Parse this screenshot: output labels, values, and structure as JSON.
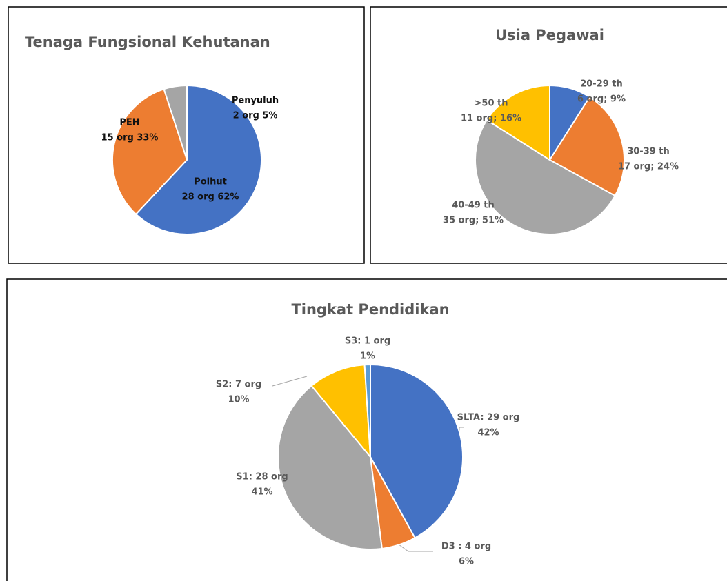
{
  "chart_data": [
    {
      "type": "pie",
      "title": "Tenaga Fungsional Kehutanan",
      "categories": [
        "Polhut",
        "PEH",
        "Penyuluh"
      ],
      "values": [
        62,
        33,
        5
      ],
      "value_labels": [
        "28 org 62%",
        "15 org 33%",
        "2 org 5%"
      ],
      "colors": [
        "#4472c4",
        "#ed7d31",
        "#a5a5a5"
      ]
    },
    {
      "type": "pie",
      "title": "Usia Pegawai",
      "categories": [
        "20-29 th",
        "30-39 th",
        "40-49 th",
        ">50 th"
      ],
      "values": [
        9,
        24,
        51,
        16
      ],
      "value_labels": [
        "6 org; 9%",
        "17 org; 24%",
        "35 org; 51%",
        "11 org; 16%"
      ],
      "colors": [
        "#4472c4",
        "#ed7d31",
        "#a5a5a5",
        "#ffc000"
      ]
    },
    {
      "type": "pie",
      "title": "Tingkat Pendidikan",
      "categories": [
        "SLTA: 29 org",
        "D3 : 4 org",
        "S1: 28 org",
        "S2: 7 org",
        "S3: 1 org"
      ],
      "values": [
        42,
        6,
        41,
        10,
        1
      ],
      "value_labels": [
        "42%",
        "6%",
        "41%",
        "10%",
        "1%"
      ],
      "colors": [
        "#4472c4",
        "#ed7d31",
        "#a5a5a5",
        "#ffc000",
        "#5b9bd5"
      ]
    }
  ]
}
